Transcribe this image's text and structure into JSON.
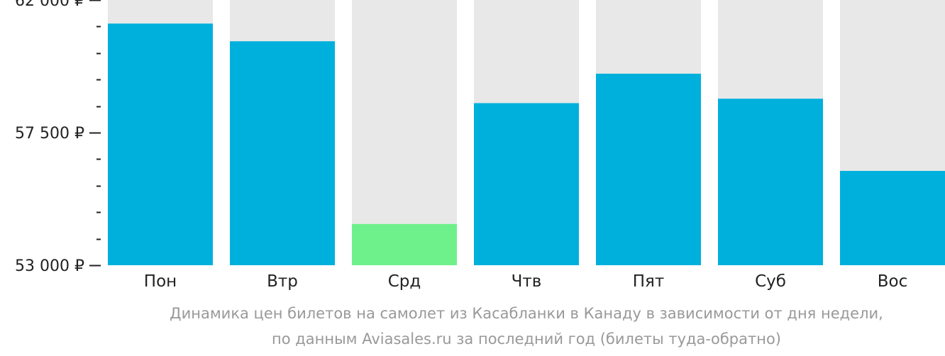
{
  "chart_data": {
    "type": "bar",
    "categories": [
      "Пон",
      "Втр",
      "Срд",
      "Чтв",
      "Пят",
      "Суб",
      "Вос"
    ],
    "values": [
      61200,
      60600,
      54400,
      58500,
      59500,
      58650,
      56200
    ],
    "ylim": [
      53000,
      62000
    ],
    "y_tick_labels": [
      "62 000 ₽",
      "57 500 ₽",
      "53 000 ₽"
    ],
    "y_tick_values": [
      62000,
      57500,
      53000
    ],
    "grid": false,
    "colors": {
      "bar": "#00b0dc",
      "bar_highlight": "#6ef08a",
      "bar_background": "#e8e8e8"
    },
    "highlight_index": 2
  },
  "caption": {
    "line1": "Динамика цен билетов на самолет из Касабланки в Канаду в зависимости от дня недели,",
    "line2": "по данным Aviasales.ru за последний год (билеты туда-обратно)"
  }
}
